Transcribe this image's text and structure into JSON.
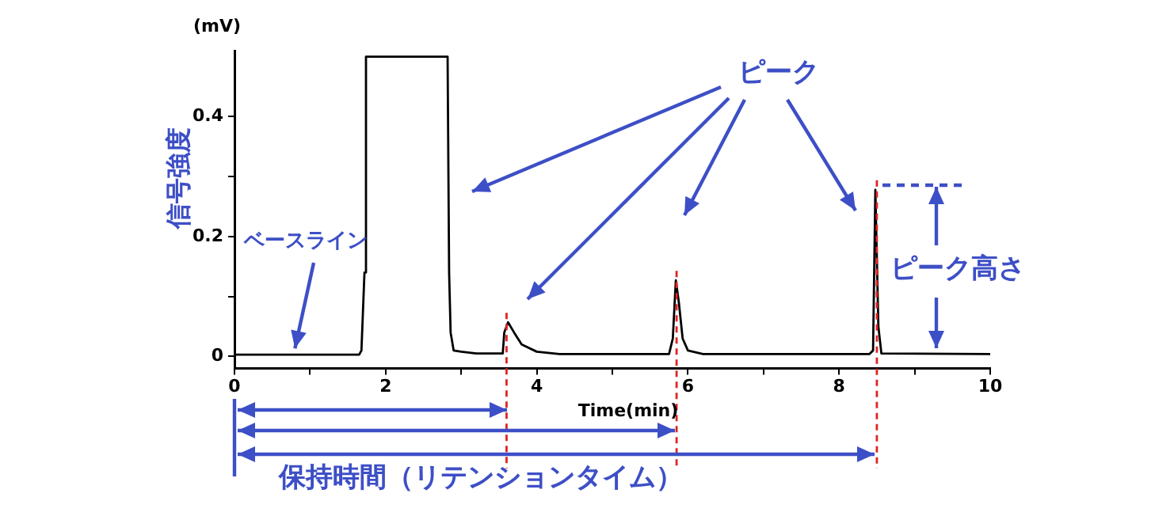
{
  "chart_data": {
    "type": "line",
    "ylabel": "信号強度",
    "xlabel": "Time(min)",
    "annotations": [
      "ピーク",
      {
        "text": "ベースライン",
        "x": 0.8,
        "y": 0.003
      },
      "ピーク高さ",
      "保持時間（リテンションタイム）",
      "(mV)"
    ],
    "series": [
      {
        "color": "#000000",
        "x": [
          0,
          1.65,
          1.68,
          1.72,
          1.74,
          2.82,
          2.84,
          2.86,
          2.9,
          3.0,
          3.2,
          3.55,
          3.57,
          3.62,
          3.7,
          3.8,
          4.0,
          4.3,
          5.75,
          5.8,
          5.84,
          5.88,
          5.93,
          6.0,
          6.2,
          8.4,
          8.45,
          8.48,
          8.52,
          8.56,
          10
        ],
        "values": [
          0.003,
          0.003,
          0.01,
          0.14,
          0.5,
          0.5,
          0.14,
          0.04,
          0.01,
          0.008,
          0.005,
          0.005,
          0.04,
          0.057,
          0.04,
          0.02,
          0.008,
          0.004,
          0.004,
          0.03,
          0.127,
          0.09,
          0.03,
          0.01,
          0.004,
          0.004,
          0.01,
          0.278,
          0.05,
          0.005,
          0.004
        ]
      }
    ],
    "xlim": [
      0,
      10
    ],
    "xticks": [
      0,
      {
        "value": 1,
        "label": null
      },
      2,
      {
        "value": 3,
        "label": null
      },
      4,
      {
        "value": 5,
        "label": null
      },
      6,
      {
        "value": 7,
        "label": null
      },
      8,
      {
        "value": 9,
        "label": null
      },
      10
    ],
    "ylim": [
      -0.02,
      0.51
    ],
    "yticks": [
      0,
      {
        "value": 0.1,
        "label": null
      },
      0.2,
      {
        "value": 0.3,
        "label": null
      },
      0.4
    ],
    "ref_lines": [
      {
        "axis": "x",
        "value": 3.6,
        "color": "#e02424",
        "line_style": "dashed"
      },
      {
        "axis": "x",
        "value": 5.85,
        "color": "#e02424",
        "line_style": "dashed"
      },
      {
        "axis": "x",
        "value": 8.5,
        "color": "#e02424",
        "line_style": "dashed"
      }
    ],
    "grid": false,
    "legend": false
  }
}
